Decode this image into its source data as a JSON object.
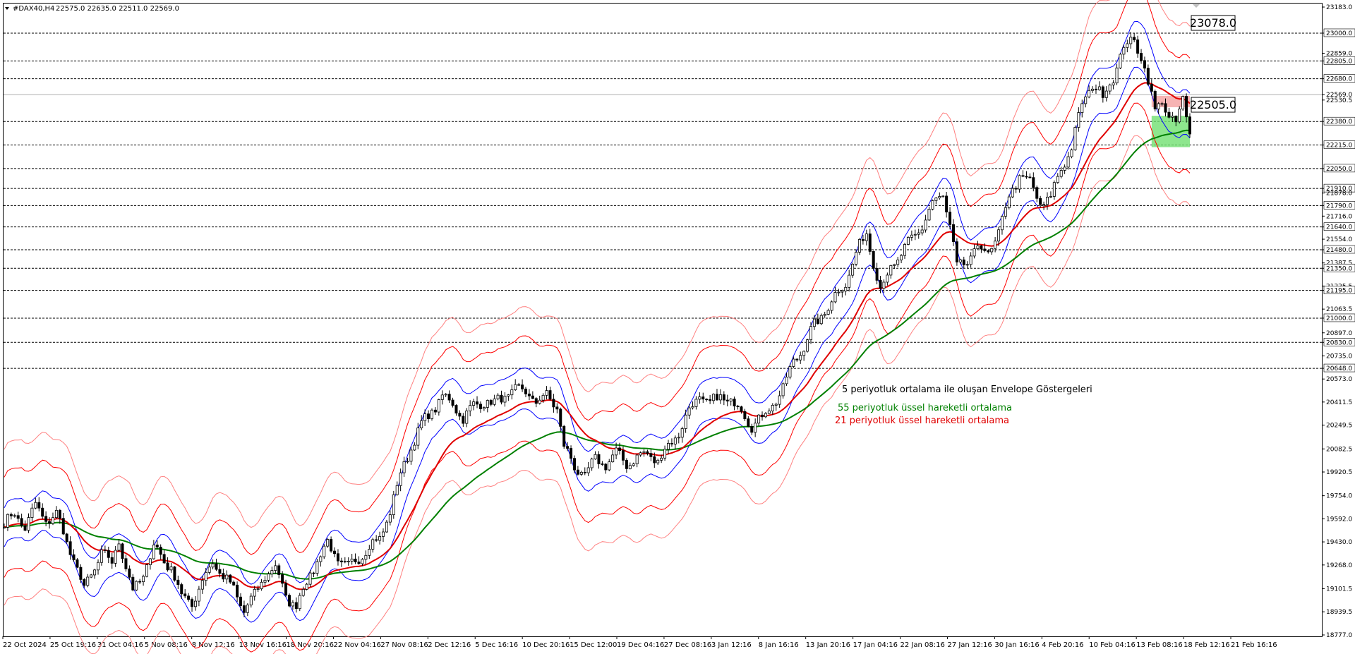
{
  "header": {
    "symbol": "#DAX40,H4",
    "ohlc": "22575.0 22635.0 22511.0 22569.0"
  },
  "colors": {
    "background": "#ffffff",
    "candle": "#000000",
    "ema21": "#e00000",
    "ema55": "#008000",
    "envelope_inner": "#0000ff",
    "envelope_mid": "#ff0000",
    "envelope_outer": "#ff8080",
    "resistance_box": "#f4a0a0",
    "support_box": "#70e070",
    "grid_dash": "#000000"
  },
  "annotations": {
    "envelope": "5 periyotluk ortalama ile oluşan Envelope Göstergeleri",
    "ema55": "55 periyotluk üssel hareketli ortalama",
    "ema21": "21 periyotluk üssel hareketli ortalama"
  },
  "chart_data": {
    "type": "candlestick",
    "title": "",
    "ylim": [
      18777.0,
      23183.0
    ],
    "y_ticks": [
      "23183.0",
      "23000.0",
      "22859.0",
      "22805.0",
      "22680.0",
      "22569.0",
      "22530.5",
      "22380.0",
      "22215.0",
      "22050.0",
      "21910.0",
      "21878.0",
      "21790.0",
      "21716.0",
      "21640.0",
      "21554.0",
      "21480.0",
      "21387.5",
      "21350.0",
      "21225.5",
      "21195.0",
      "21063.5",
      "21000.0",
      "20897.0",
      "20830.0",
      "20735.0",
      "20648.0",
      "20573.0",
      "20411.5",
      "20249.5",
      "20082.5",
      "19920.5",
      "19754.0",
      "19592.0",
      "19430.0",
      "19268.0",
      "19101.5",
      "18939.5",
      "18777.0"
    ],
    "horizontal_levels": [
      23000.0,
      22805.0,
      22680.0,
      22380.0,
      22215.0,
      22050.0,
      21910.0,
      21790.0,
      21640.0,
      21480.0,
      21350.0,
      21195.0,
      21000.0,
      20830.0,
      20648.0
    ],
    "current_price": 22569.0,
    "price_labels": [
      "23078.0",
      "22505.0"
    ],
    "x_ticks": [
      "22 Oct 2024",
      "25 Oct 19:16",
      "31 Oct 04:16",
      "5 Nov 08:16",
      "8 Nov 12:16",
      "13 Nov 16:16",
      "18 Nov 20:16",
      "22 Nov 04:16",
      "27 Nov 08:16",
      "2 Dec 12:16",
      "5 Dec 16:16",
      "10 Dec 20:16",
      "15 Dec 12:00",
      "19 Dec 04:16",
      "27 Dec 08:16",
      "3 Jan 12:16",
      "8 Jan 16:16",
      "13 Jan 20:16",
      "17 Jan 04:16",
      "22 Jan 08:16",
      "27 Jan 12:16",
      "30 Jan 16:16",
      "4 Feb 20:16",
      "10 Feb 04:16",
      "13 Feb 08:16",
      "18 Feb 12:16",
      "21 Feb 16:16"
    ],
    "series": [
      {
        "name": "55 periyotluk üssel hareketli ortalama",
        "color": "#008000"
      },
      {
        "name": "21 periyotluk üssel hareketli ortalama",
        "color": "#e00000"
      },
      {
        "name": "5 periyotluk ortalama ile oluşan Envelope Göstergeleri",
        "color": "#0000ff"
      }
    ],
    "price_path": [
      [
        0,
        19560
      ],
      [
        3,
        19620
      ],
      [
        6,
        19540
      ],
      [
        9,
        19680
      ],
      [
        12,
        19580
      ],
      [
        15,
        19620
      ],
      [
        17,
        19500
      ],
      [
        20,
        19300
      ],
      [
        23,
        19100
      ],
      [
        26,
        19250
      ],
      [
        28,
        19350
      ],
      [
        31,
        19280
      ],
      [
        33,
        19450
      ],
      [
        35,
        19250
      ],
      [
        37,
        19080
      ],
      [
        40,
        19200
      ],
      [
        43,
        19400
      ],
      [
        46,
        19300
      ],
      [
        48,
        19250
      ],
      [
        51,
        19050
      ],
      [
        54,
        19000
      ],
      [
        57,
        19150
      ],
      [
        60,
        19300
      ],
      [
        63,
        19180
      ],
      [
        66,
        19100
      ],
      [
        69,
        18950
      ],
      [
        72,
        19050
      ],
      [
        75,
        19200
      ],
      [
        78,
        19250
      ],
      [
        81,
        19050
      ],
      [
        84,
        18980
      ],
      [
        87,
        19150
      ],
      [
        90,
        19300
      ],
      [
        93,
        19420
      ],
      [
        96,
        19300
      ],
      [
        99,
        19250
      ],
      [
        102,
        19320
      ],
      [
        105,
        19400
      ],
      [
        108,
        19450
      ],
      [
        111,
        19650
      ],
      [
        114,
        19900
      ],
      [
        117,
        20100
      ],
      [
        120,
        20250
      ],
      [
        123,
        20350
      ],
      [
        126,
        20450
      ],
      [
        129,
        20400
      ],
      [
        132,
        20300
      ],
      [
        135,
        20380
      ],
      [
        138,
        20420
      ],
      [
        141,
        20400
      ],
      [
        144,
        20450
      ],
      [
        147,
        20500
      ],
      [
        150,
        20480
      ],
      [
        153,
        20420
      ],
      [
        156,
        20450
      ],
      [
        159,
        20380
      ],
      [
        161,
        20100
      ],
      [
        164,
        19950
      ],
      [
        167,
        19900
      ],
      [
        170,
        20000
      ],
      [
        173,
        19980
      ],
      [
        176,
        20050
      ],
      [
        179,
        19980
      ],
      [
        182,
        20020
      ],
      [
        185,
        20050
      ],
      [
        188,
        20000
      ],
      [
        191,
        20100
      ],
      [
        194,
        20200
      ],
      [
        197,
        20350
      ],
      [
        200,
        20450
      ],
      [
        203,
        20400
      ],
      [
        206,
        20450
      ],
      [
        209,
        20420
      ],
      [
        212,
        20350
      ],
      [
        215,
        20250
      ],
      [
        218,
        20300
      ],
      [
        221,
        20400
      ],
      [
        224,
        20500
      ],
      [
        227,
        20700
      ],
      [
        230,
        20800
      ],
      [
        233,
        20950
      ],
      [
        236,
        21050
      ],
      [
        239,
        21150
      ],
      [
        242,
        21250
      ],
      [
        245,
        21450
      ],
      [
        248,
        21600
      ],
      [
        250,
        21400
      ],
      [
        252,
        21200
      ],
      [
        255,
        21350
      ],
      [
        258,
        21450
      ],
      [
        261,
        21550
      ],
      [
        264,
        21650
      ],
      [
        267,
        21800
      ],
      [
        270,
        21870
      ],
      [
        272,
        21650
      ],
      [
        274,
        21350
      ],
      [
        277,
        21400
      ],
      [
        280,
        21500
      ],
      [
        283,
        21450
      ],
      [
        286,
        21600
      ],
      [
        289,
        21850
      ],
      [
        292,
        22000
      ],
      [
        295,
        21950
      ],
      [
        298,
        21800
      ],
      [
        301,
        21850
      ],
      [
        304,
        22050
      ],
      [
        307,
        22200
      ],
      [
        310,
        22500
      ],
      [
        313,
        22650
      ],
      [
        316,
        22550
      ],
      [
        319,
        22700
      ],
      [
        322,
        22900
      ],
      [
        325,
        22950
      ],
      [
        327,
        22850
      ],
      [
        329,
        22650
      ],
      [
        331,
        22450
      ],
      [
        333,
        22550
      ],
      [
        335,
        22400
      ],
      [
        337,
        22350
      ],
      [
        339,
        22550
      ],
      [
        341,
        22300
      ]
    ]
  }
}
